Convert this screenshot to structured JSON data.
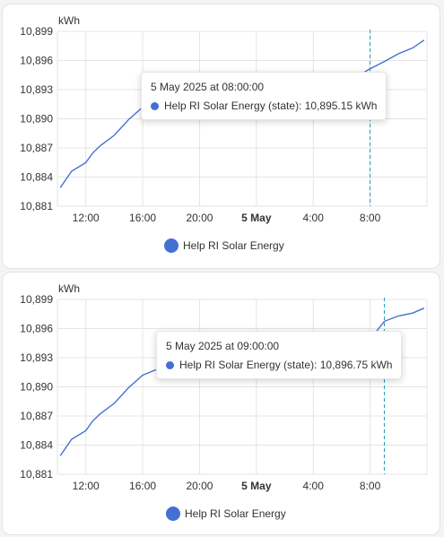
{
  "colors": {
    "series": "#4470d4",
    "crosshair": "#1a9cb3"
  },
  "charts": [
    {
      "unit": "kWh",
      "y_ticks": [
        "10,899",
        "10,896",
        "10,893",
        "10,890",
        "10,887",
        "10,884",
        "10,881"
      ],
      "x_ticks": [
        "12:00",
        "16:00",
        "20:00",
        "5 May",
        "4:00",
        "8:00"
      ],
      "tooltip": {
        "title": "5 May 2025 at 08:00:00",
        "value": "Help RI Solar Energy (state): 10,895.15 kWh"
      },
      "legend": "Help RI Solar Energy"
    },
    {
      "unit": "kWh",
      "y_ticks": [
        "10,899",
        "10,896",
        "10,893",
        "10,890",
        "10,887",
        "10,884",
        "10,881"
      ],
      "x_ticks": [
        "12:00",
        "16:00",
        "20:00",
        "5 May",
        "4:00",
        "8:00"
      ],
      "tooltip": {
        "title": "5 May 2025 at 09:00:00",
        "value": "Help RI Solar Energy (state): 10,896.75 kWh"
      },
      "legend": "Help RI Solar Energy"
    }
  ],
  "chart_data": [
    {
      "type": "line",
      "xlabel": "",
      "ylabel": "kWh",
      "ylim": [
        10881,
        10899
      ],
      "x_hours_ticks": [
        12,
        16,
        20,
        24,
        28,
        32
      ],
      "series": [
        {
          "name": "Help RI Solar Energy",
          "x": [
            10.2,
            11,
            12,
            12.5,
            13,
            14,
            15,
            16,
            17,
            18,
            19,
            20,
            21,
            22,
            23,
            24,
            25,
            26,
            27,
            28,
            29,
            30,
            31,
            32,
            33,
            34,
            35,
            35.8
          ],
          "y": [
            10882.9,
            10884.6,
            10885.5,
            10886.5,
            10887.2,
            10888.3,
            10889.9,
            10891.2,
            10891.8,
            10892.2,
            10892.5,
            10892.8,
            10893.0,
            10893.2,
            10893.4,
            10893.6,
            10893.7,
            10893.8,
            10893.9,
            10894.0,
            10894.1,
            10894.2,
            10894.3,
            10895.15,
            10895.9,
            10896.7,
            10897.3,
            10898.1
          ]
        }
      ],
      "crosshair_x": 32
    },
    {
      "type": "line",
      "xlabel": "",
      "ylabel": "kWh",
      "ylim": [
        10881,
        10899
      ],
      "x_hours_ticks": [
        12,
        16,
        20,
        24,
        28,
        32
      ],
      "series": [
        {
          "name": "Help RI Solar Energy",
          "x": [
            10.2,
            11,
            12,
            12.5,
            13,
            14,
            15,
            16,
            17,
            18,
            19,
            20,
            21,
            22,
            23,
            24,
            25,
            26,
            27,
            28,
            29,
            30,
            31,
            32,
            33,
            34,
            35,
            35.8
          ],
          "y": [
            10882.9,
            10884.6,
            10885.5,
            10886.5,
            10887.2,
            10888.3,
            10889.9,
            10891.2,
            10891.8,
            10892.2,
            10892.5,
            10892.8,
            10893.0,
            10893.2,
            10893.4,
            10893.6,
            10893.7,
            10893.8,
            10893.9,
            10894.0,
            10894.1,
            10894.2,
            10894.3,
            10894.9,
            10896.75,
            10897.3,
            10897.6,
            10898.1
          ]
        }
      ],
      "crosshair_x": 33
    }
  ]
}
